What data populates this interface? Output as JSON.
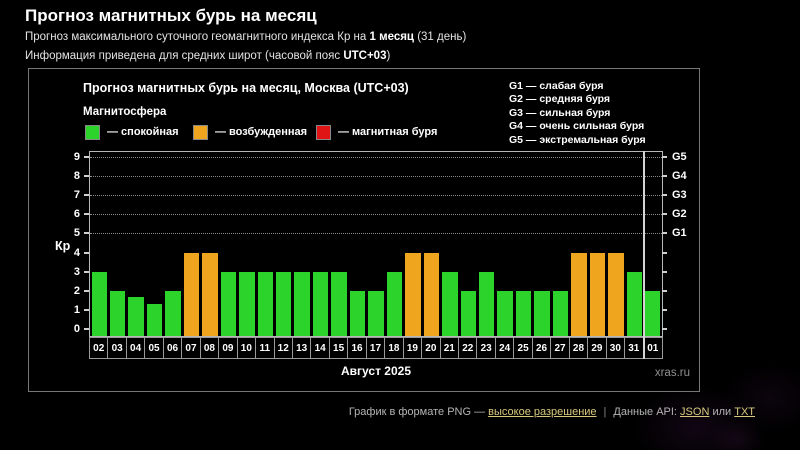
{
  "page": {
    "title": "Прогноз магнитных бурь на месяц",
    "subtitle1": {
      "prefix": "Прогноз максимального суточного геомагнитного индекса Кр на ",
      "bold": "1 месяц",
      "suffix": " (31 день)"
    },
    "subtitle2": {
      "prefix": "Информация приведена для средних широт (часовой пояс ",
      "bold": "UTC+03",
      "suffix": ")"
    }
  },
  "panel": {
    "title": "Прогноз магнитных бурь на месяц, Москва (UTC+03)",
    "magnetosphere_label": "Магнитосфера",
    "legend": {
      "quiet": "— спокойная",
      "excited": "— возбужденная",
      "storm": "— магнитная буря"
    },
    "g_legend": [
      "G1 — слабая буря",
      "G2 — средняя буря",
      "G3 — сильная буря",
      "G4 — очень сильная буря",
      "G5 — экстремальная буря"
    ],
    "watermark": "xras.ru"
  },
  "colors": {
    "quiet": "#2bd32b",
    "excited": "#f0a51f",
    "storm": "#e01414",
    "link": "#d9c97f"
  },
  "chart_data": {
    "type": "bar",
    "title": "Прогноз магнитных бурь на месяц, Москва (UTC+03)",
    "xlabel": "Август 2025",
    "ylabel": "Кр",
    "ylim": [
      0,
      9
    ],
    "y_ticks": [
      0,
      1,
      2,
      3,
      4,
      5,
      6,
      7,
      8,
      9
    ],
    "grid": "dotted horizontal lines at Kp 5–9 only",
    "legend_position": "top",
    "categories": [
      "02",
      "03",
      "04",
      "05",
      "06",
      "07",
      "08",
      "09",
      "10",
      "11",
      "12",
      "13",
      "14",
      "15",
      "16",
      "17",
      "18",
      "19",
      "20",
      "21",
      "22",
      "23",
      "24",
      "25",
      "26",
      "27",
      "28",
      "29",
      "30",
      "31",
      "01"
    ],
    "values": [
      3,
      2,
      1.67,
      1.33,
      2,
      4,
      4,
      3,
      3,
      3,
      3,
      3,
      3,
      3,
      2,
      2,
      3,
      4,
      4,
      3,
      2,
      3,
      2,
      2,
      2,
      2,
      4,
      4,
      4,
      3,
      2
    ],
    "states": [
      "quiet",
      "quiet",
      "quiet",
      "quiet",
      "quiet",
      "excited",
      "excited",
      "quiet",
      "quiet",
      "quiet",
      "quiet",
      "quiet",
      "quiet",
      "quiet",
      "quiet",
      "quiet",
      "quiet",
      "excited",
      "excited",
      "quiet",
      "quiet",
      "quiet",
      "quiet",
      "quiet",
      "quiet",
      "quiet",
      "excited",
      "excited",
      "excited",
      "quiet",
      "quiet"
    ],
    "right_axis": [
      {
        "value": 5,
        "label": "G1"
      },
      {
        "value": 6,
        "label": "G2"
      },
      {
        "value": 7,
        "label": "G3"
      },
      {
        "value": 8,
        "label": "G4"
      },
      {
        "value": 9,
        "label": "G5"
      }
    ],
    "month_separator_after": "31"
  },
  "footer": {
    "text1": "График в формате PNG — ",
    "link1": "высокое разрешение",
    "sep": "|",
    "text2": "Данные API: ",
    "link2": "JSON",
    "text3": " или ",
    "link3": "TXT"
  }
}
